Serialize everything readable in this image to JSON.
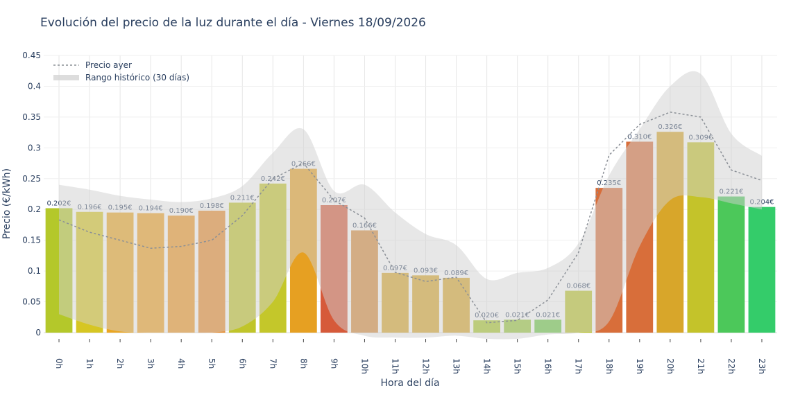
{
  "chart_data": {
    "type": "bar",
    "title": "Evolución del precio de la luz durante el día - Viernes 18/09/2026",
    "xlabel": "Hora del día",
    "ylabel": "Precio (€/kWh)",
    "ylim": [
      0,
      0.45
    ],
    "yticks": [
      0,
      0.05,
      0.1,
      0.15,
      0.2,
      0.25,
      0.3,
      0.35,
      0.4,
      0.45
    ],
    "ytick_labels": [
      "0",
      "0.05",
      "0.1",
      "0.15",
      "0.2",
      "0.25",
      "0.3",
      "0.35",
      "0.4",
      "0.45"
    ],
    "grid": true,
    "legend_position": "top-left",
    "categories": [
      "0h",
      "1h",
      "2h",
      "3h",
      "4h",
      "5h",
      "6h",
      "7h",
      "8h",
      "9h",
      "10h",
      "11h",
      "12h",
      "13h",
      "14h",
      "15h",
      "16h",
      "17h",
      "18h",
      "19h",
      "20h",
      "21h",
      "22h",
      "23h"
    ],
    "series": [
      {
        "type": "bar",
        "values": [
          0.202,
          0.196,
          0.195,
          0.194,
          0.19,
          0.198,
          0.211,
          0.242,
          0.266,
          0.207,
          0.166,
          0.097,
          0.093,
          0.089,
          0.02,
          0.021,
          0.021,
          0.068,
          0.235,
          0.31,
          0.326,
          0.309,
          0.221,
          0.204
        ],
        "labels": [
          "0.202€",
          "0.196€",
          "0.195€",
          "0.194€",
          "0.190€",
          "0.198€",
          "0.211€",
          "0.242€",
          "0.266€",
          "0.207€",
          "0.166€",
          "0.097€",
          "0.093€",
          "0.089€",
          "0.020€",
          "0.021€",
          "0.021€",
          "0.068€",
          "0.235€",
          "0.310€",
          "0.326€",
          "0.309€",
          "0.221€",
          "0.204€"
        ],
        "colors": [
          "#b4c82a",
          "#d6c623",
          "#eaa622",
          "#efa022",
          "#ee9622",
          "#e88a2a",
          "#c0c52a",
          "#c4c72a",
          "#e6a022",
          "#d65a3a",
          "#d68a3a",
          "#d8a62a",
          "#d8a62a",
          "#d8a62a",
          "#a8c82a",
          "#98c93a",
          "#6cc845",
          "#bac42a",
          "#d86e3a",
          "#d86e3a",
          "#d8a62a",
          "#c4c32a",
          "#4cc85a",
          "#34cc6a"
        ]
      },
      {
        "type": "line",
        "name": "Precio ayer",
        "color": "#8a8f96",
        "values": [
          0.183,
          0.163,
          0.15,
          0.137,
          0.14,
          0.15,
          0.19,
          0.25,
          0.275,
          0.215,
          0.186,
          0.098,
          0.083,
          0.09,
          0.016,
          0.02,
          0.053,
          0.13,
          0.288,
          0.338,
          0.358,
          0.35,
          0.264,
          0.247
        ]
      },
      {
        "type": "area",
        "name": "Rango histórico (30 días)",
        "color": "#cfcfcf",
        "upper": [
          0.24,
          0.232,
          0.222,
          0.216,
          0.212,
          0.218,
          0.238,
          0.292,
          0.33,
          0.23,
          0.24,
          0.195,
          0.16,
          0.142,
          0.087,
          0.097,
          0.105,
          0.145,
          0.255,
          0.33,
          0.4,
          0.42,
          0.323,
          0.287
        ],
        "lower": [
          0.03,
          0.013,
          0.002,
          0.0,
          0.0,
          0.0,
          0.01,
          0.05,
          0.13,
          0.02,
          -0.005,
          -0.008,
          -0.008,
          -0.005,
          -0.01,
          -0.01,
          -0.003,
          0.0,
          0.018,
          0.14,
          0.215,
          0.22,
          0.21,
          0.2
        ]
      }
    ]
  }
}
